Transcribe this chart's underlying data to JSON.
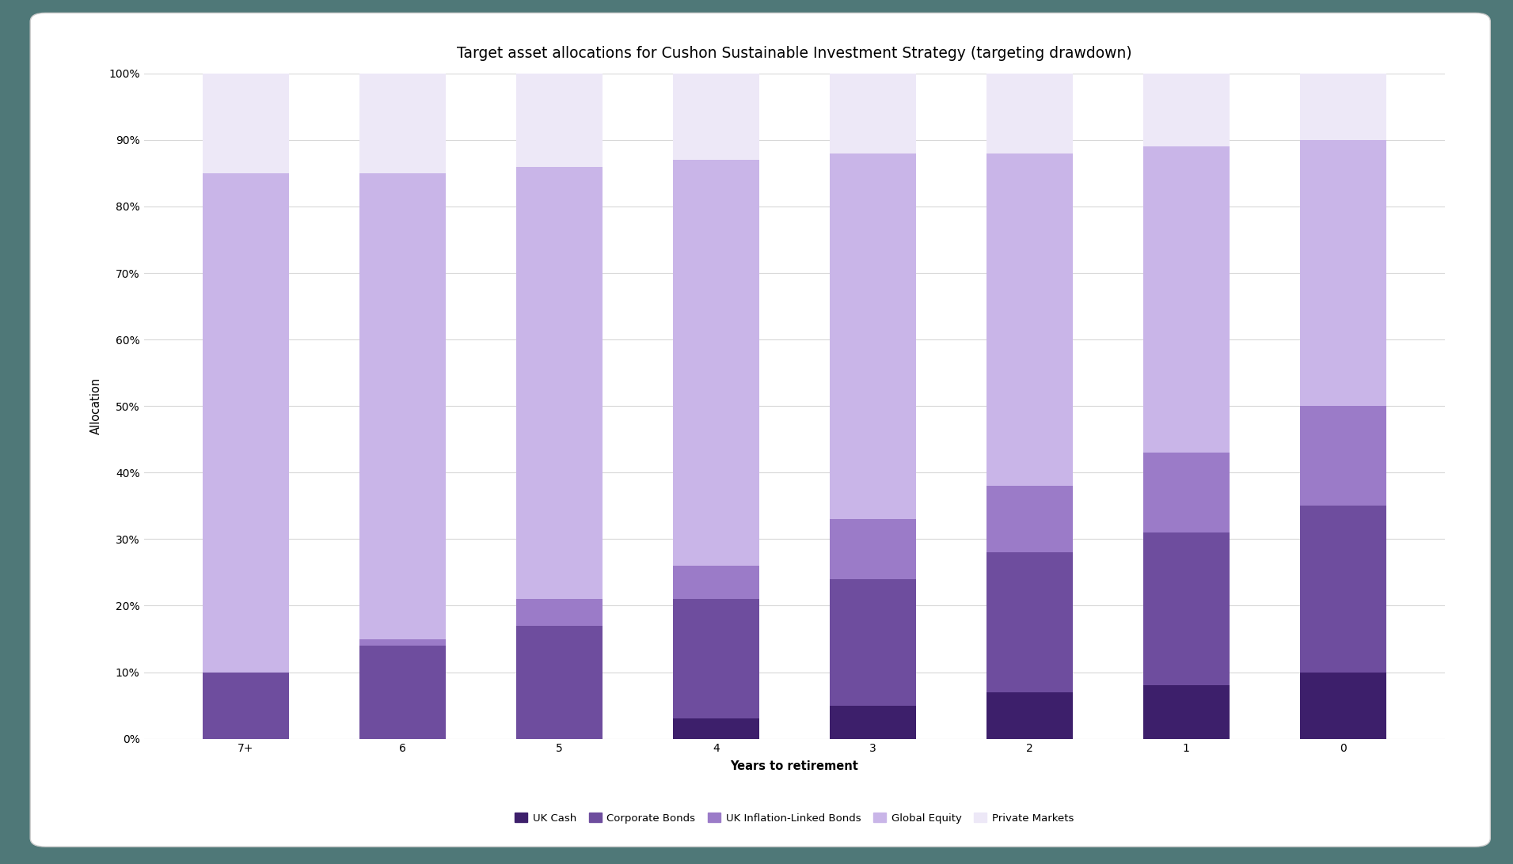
{
  "title": "Target asset allocations for Cushon Sustainable Investment Strategy (targeting drawdown)",
  "xlabel": "Years to retirement",
  "ylabel": "Allocation",
  "categories": [
    "7+",
    "6",
    "5",
    "4",
    "3",
    "2",
    "1",
    "0"
  ],
  "series_order": [
    "UK Cash",
    "Corporate Bonds",
    "UK Inflation-Linked Bonds",
    "Global Equity",
    "Private Markets"
  ],
  "series": {
    "UK Cash": [
      0,
      0,
      0,
      3,
      5,
      7,
      8,
      10
    ],
    "Corporate Bonds": [
      10,
      14,
      17,
      18,
      19,
      21,
      23,
      25
    ],
    "UK Inflation-Linked Bonds": [
      0,
      1,
      4,
      5,
      9,
      10,
      12,
      15
    ],
    "Global Equity": [
      75,
      70,
      65,
      61,
      55,
      50,
      46,
      40
    ],
    "Private Markets": [
      15,
      15,
      14,
      13,
      12,
      12,
      11,
      10
    ]
  },
  "colors": {
    "UK Cash": "#3d1f6b",
    "Corporate Bonds": "#6e4d9e",
    "UK Inflation-Linked Bonds": "#9b7bc8",
    "Global Equity": "#c9b5e8",
    "Private Markets": "#ede8f7"
  },
  "yticks": [
    0,
    10,
    20,
    30,
    40,
    50,
    60,
    70,
    80,
    90,
    100
  ],
  "ytick_labels": [
    "0%",
    "10%",
    "20%",
    "30%",
    "40%",
    "50%",
    "60%",
    "70%",
    "80%",
    "90%",
    "100%"
  ],
  "ylim": [
    0,
    100
  ],
  "chart_bg": "#ffffff",
  "outer_bg": "#4f7878",
  "bar_width": 0.55,
  "title_fontsize": 13.5,
  "axis_label_fontsize": 10.5,
  "tick_fontsize": 10,
  "legend_fontsize": 9.5
}
